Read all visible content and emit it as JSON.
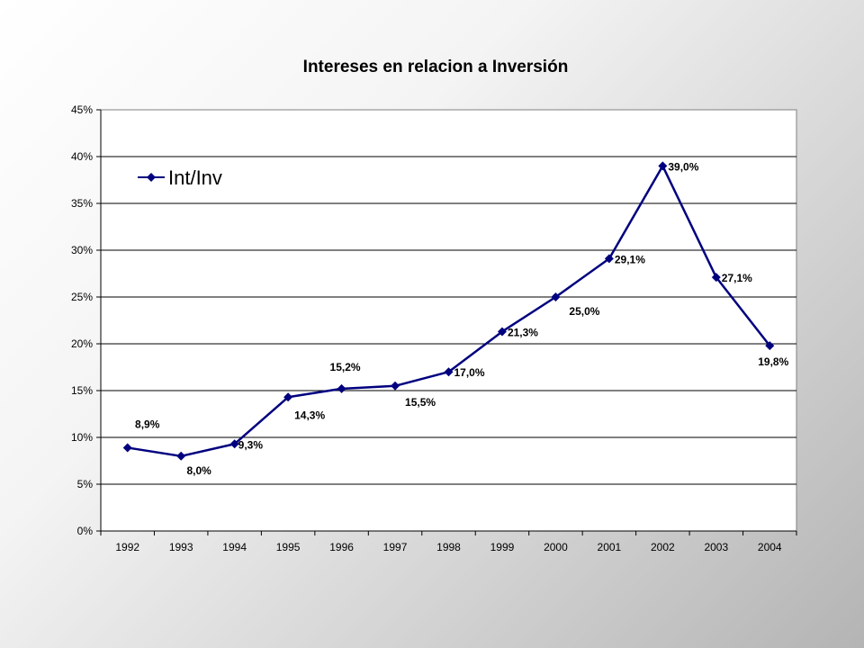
{
  "chart_data": {
    "type": "line",
    "title": "Intereses en relacion a Inversión",
    "xlabel": "",
    "ylabel": "",
    "categories": [
      "1992",
      "1993",
      "1994",
      "1995",
      "1996",
      "1997",
      "1998",
      "1999",
      "2000",
      "2001",
      "2002",
      "2003",
      "2004"
    ],
    "series": [
      {
        "name": "Int/Inv",
        "color": "#00007f",
        "values": [
          8.9,
          8.0,
          9.3,
          14.3,
          15.2,
          15.5,
          17.0,
          21.3,
          25.0,
          29.1,
          39.0,
          27.1,
          19.8
        ],
        "labels": [
          "8,9%",
          "8,0%",
          "9,3%",
          "14,3%",
          "15,2%",
          "15,5%",
          "17,0%",
          "21,3%",
          "25,0%",
          "29,1%",
          "39,0%",
          "27,1%",
          "19,8%"
        ]
      }
    ],
    "ylim": [
      0,
      45
    ],
    "yticks": [
      0,
      5,
      10,
      15,
      20,
      25,
      30,
      35,
      40,
      45
    ],
    "ytick_labels": [
      "0%",
      "5%",
      "10%",
      "15%",
      "20%",
      "25%",
      "30%",
      "35%",
      "40%",
      "45%"
    ],
    "grid": "horizontal",
    "legend_position": "top-left"
  }
}
